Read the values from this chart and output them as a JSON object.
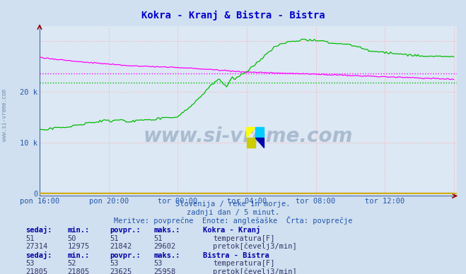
{
  "title": "Kokra - Kranj & Bistra - Bistra",
  "title_color": "#0000cc",
  "bg_color": "#d0e0f0",
  "plot_bg_color": "#dce8f4",
  "grid_color": "#ffaaaa",
  "xlabel_color": "#2255aa",
  "ylabel_ticks": [
    "0",
    "10 k",
    "20 k"
  ],
  "ytick_values": [
    0,
    10000,
    20000
  ],
  "ylim": [
    -500,
    33000
  ],
  "xlim": [
    0,
    290
  ],
  "xtick_labels": [
    "pon 16:00",
    "pon 20:00",
    "tor 00:00",
    "tor 04:00",
    "tor 08:00",
    "tor 12:00"
  ],
  "xtick_positions": [
    0,
    48,
    96,
    144,
    192,
    240
  ],
  "subtitle1": "Slovenija / reke in morje.",
  "subtitle2": "zadnji dan / 5 minut.",
  "subtitle3": "Meritve: povprečne  Enote: anglešaške  Črta: povprečje",
  "subtitle_color": "#2255aa",
  "watermark": "www.si-vreme.com",
  "watermark_color": "#1a3a6a",
  "watermark_alpha": 0.25,
  "kokra_flow_color": "#00bb00",
  "kokra_temp_color": "#dd0000",
  "bistra_flow_color": "#ff00ff",
  "bistra_temp_color": "#cccc00",
  "avg_kokra_flow": 21842,
  "avg_bistra_flow": 23625,
  "table_header_color": "#0000aa",
  "table_value_color": "#333366",
  "kokra_sedaj": 27314,
  "kokra_min": 12975,
  "kokra_povpr": 21842,
  "kokra_maks": 29602,
  "kokra_temp_sedaj": 51,
  "kokra_temp_min": 50,
  "kokra_temp_povpr": 51,
  "kokra_temp_maks": 51,
  "bistra_sedaj": 21805,
  "bistra_min": 21805,
  "bistra_povpr": 23625,
  "bistra_maks": 25958,
  "bistra_temp_sedaj": 53,
  "bistra_temp_min": 52,
  "bistra_temp_povpr": 53,
  "bistra_temp_maks": 53,
  "n_points": 289,
  "baseline_color": "#ccaa00",
  "spine_color": "#4466aa",
  "arrow_color": "#990000"
}
